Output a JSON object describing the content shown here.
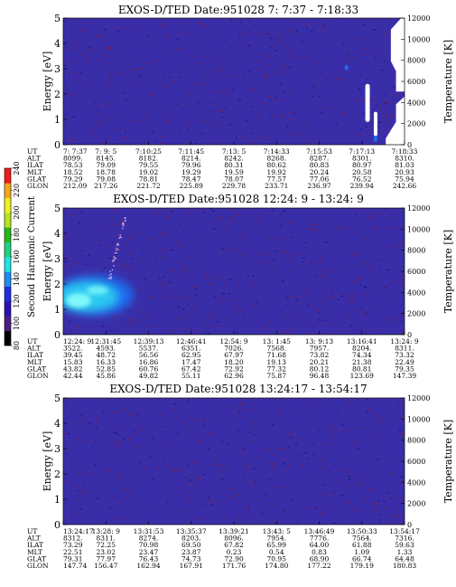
{
  "colorbar": {
    "label": "Second Harmonic Current",
    "ticks": [
      "80",
      "100",
      "120",
      "140",
      "160",
      "180",
      "200",
      "220",
      "240"
    ],
    "colors": [
      "#000000",
      "#4a1e86",
      "#2c12ae",
      "#1f2ee0",
      "#1e8cf0",
      "#1fe6e6",
      "#20d27e",
      "#23b81c",
      "#b5e51a",
      "#f0f01e",
      "#f5a51a",
      "#f01a1a"
    ]
  },
  "colors": {
    "background_field": "#3a2ea8",
    "speckle": "#7a1f4a",
    "speckle_alt": "#1a1688",
    "warm_1": "#1e6cf0",
    "warm_2": "#2cc8f0",
    "warm_3": "#7ef7f7"
  },
  "chart_data": [
    {
      "type": "heatmap",
      "title": "EXOS-D/TED   Date:951028   7: 7:37 - 7:18:33",
      "ylabel": "Energy [eV]",
      "ylabel_right": "Temperature [K]",
      "ylim": [
        0,
        5
      ],
      "yticks": [
        "0",
        "1",
        "2",
        "3",
        "4",
        "5"
      ],
      "ylim_right": [
        0,
        12000
      ],
      "yticks_right": [
        "0",
        "2000",
        "4000",
        "6000",
        "8000",
        "10000",
        "12000"
      ],
      "rows": [
        {
          "label": "UT",
          "values": [
            "7: 7:37",
            "7: 9: 5",
            "7:10:25",
            "7:11:45",
            "7:13: 5",
            "7:14:33",
            "7:15:53",
            "7:17:13",
            "7:18:33"
          ]
        },
        {
          "label": "ALT",
          "values": [
            "8099.",
            "8145.",
            "8182.",
            "8214.",
            "8242.",
            "8268.",
            "8287.",
            "8301.",
            "8310."
          ]
        },
        {
          "label": "ILAT",
          "values": [
            "78.53",
            "79.09",
            "79.55",
            "79.96",
            "80.31",
            "80.62",
            "80.83",
            "80.97",
            "81.03"
          ]
        },
        {
          "label": "MLT",
          "values": [
            "18.52",
            "18.78",
            "19.02",
            "19.29",
            "19.59",
            "19.92",
            "20.24",
            "20.58",
            "20.93"
          ]
        },
        {
          "label": "GLAT",
          "values": [
            "79.29",
            "79.08",
            "78.81",
            "78.47",
            "78.07",
            "77.57",
            "77.06",
            "76.52",
            "75.94"
          ]
        },
        {
          "label": "GLON",
          "values": [
            "212.09",
            "217.26",
            "221.72",
            "225.89",
            "229.78",
            "233.71",
            "236.97",
            "239.94",
            "242.66"
          ]
        }
      ]
    },
    {
      "type": "heatmap",
      "title": "EXOS-D/TED   Date:951028   12:24: 9 - 13:24: 9",
      "ylabel": "Energy [eV]",
      "ylabel_right": "Temperature [K]",
      "ylim": [
        0,
        5
      ],
      "yticks": [
        "0",
        "1",
        "2",
        "3",
        "4",
        "5"
      ],
      "ylim_right": [
        0,
        12000
      ],
      "yticks_right": [
        "0",
        "2000",
        "4000",
        "6000",
        "8000",
        "10000",
        "12000"
      ],
      "rows": [
        {
          "label": "UT",
          "values": [
            "12:24: 9",
            "12:31:45",
            "12:39:13",
            "12:46:41",
            "12:54: 9",
            "13: 1:45",
            "13: 9:13",
            "13:16:41",
            "13:24: 9"
          ]
        },
        {
          "label": "ALT",
          "values": [
            "3522.",
            "4593.",
            "5537.",
            "6351.",
            "7026.",
            "7568.",
            "7957.",
            "8204.",
            "8311."
          ]
        },
        {
          "label": "ILAT",
          "values": [
            "39.45",
            "48.72",
            "56.56",
            "62.95",
            "67.97",
            "71.68",
            "73.82",
            "74.34",
            "73.32"
          ]
        },
        {
          "label": "MLT",
          "values": [
            "15.83",
            "16.33",
            "16.86",
            "17.47",
            "18.20",
            "19.13",
            "20.21",
            "21.38",
            "22.49"
          ]
        },
        {
          "label": "GLAT",
          "values": [
            "43.82",
            "52.85",
            "60.76",
            "67.42",
            "72.92",
            "77.32",
            "80.12",
            "80.81",
            "79.35"
          ]
        },
        {
          "label": "GLON",
          "values": [
            "42.44",
            "45.86",
            "49.82",
            "55.11",
            "62.96",
            "75.87",
            "96.48",
            "123.69",
            "147.39"
          ]
        }
      ]
    },
    {
      "type": "heatmap",
      "title": "EXOS-D/TED   Date:951028   13:24:17 - 13:54:17",
      "ylabel": "Energy [eV]",
      "ylabel_right": "Temperature [K]",
      "ylim": [
        0,
        5
      ],
      "yticks": [
        "0",
        "1",
        "2",
        "3",
        "4",
        "5"
      ],
      "ylim_right": [
        0,
        12000
      ],
      "yticks_right": [
        "0",
        "2000",
        "4000",
        "6000",
        "8000",
        "10000",
        "12000"
      ],
      "rows": [
        {
          "label": "UT",
          "values": [
            "13:24:17",
            "13:28: 9",
            "13:31:53",
            "13:35:37",
            "13:39:21",
            "13:43: 5",
            "13:46:49",
            "13:50:33",
            "13:54:17"
          ]
        },
        {
          "label": "ALT",
          "values": [
            "8312.",
            "8311.",
            "8274.",
            "8203.",
            "8096.",
            "7954.",
            "7776.",
            "7564.",
            "7316."
          ]
        },
        {
          "label": "ILAT",
          "values": [
            "73.29",
            "72.25",
            "70.98",
            "69.50",
            "67.82",
            "65.99",
            "64.00",
            "61.88",
            "59.63"
          ]
        },
        {
          "label": "MLT",
          "values": [
            "22.51",
            "23.02",
            "23.47",
            "23.87",
            "0.23",
            "0.54",
            "0.83",
            "1.09",
            "1.33"
          ]
        },
        {
          "label": "GLAT",
          "values": [
            "79.31",
            "77.97",
            "76.43",
            "74.73",
            "72.90",
            "70.95",
            "68.90",
            "66.74",
            "64.48"
          ]
        },
        {
          "label": "GLON",
          "values": [
            "147.74",
            "156.47",
            "162.94",
            "167.91",
            "171.76",
            "174.80",
            "177.22",
            "179.19",
            "180.83"
          ]
        }
      ]
    }
  ]
}
